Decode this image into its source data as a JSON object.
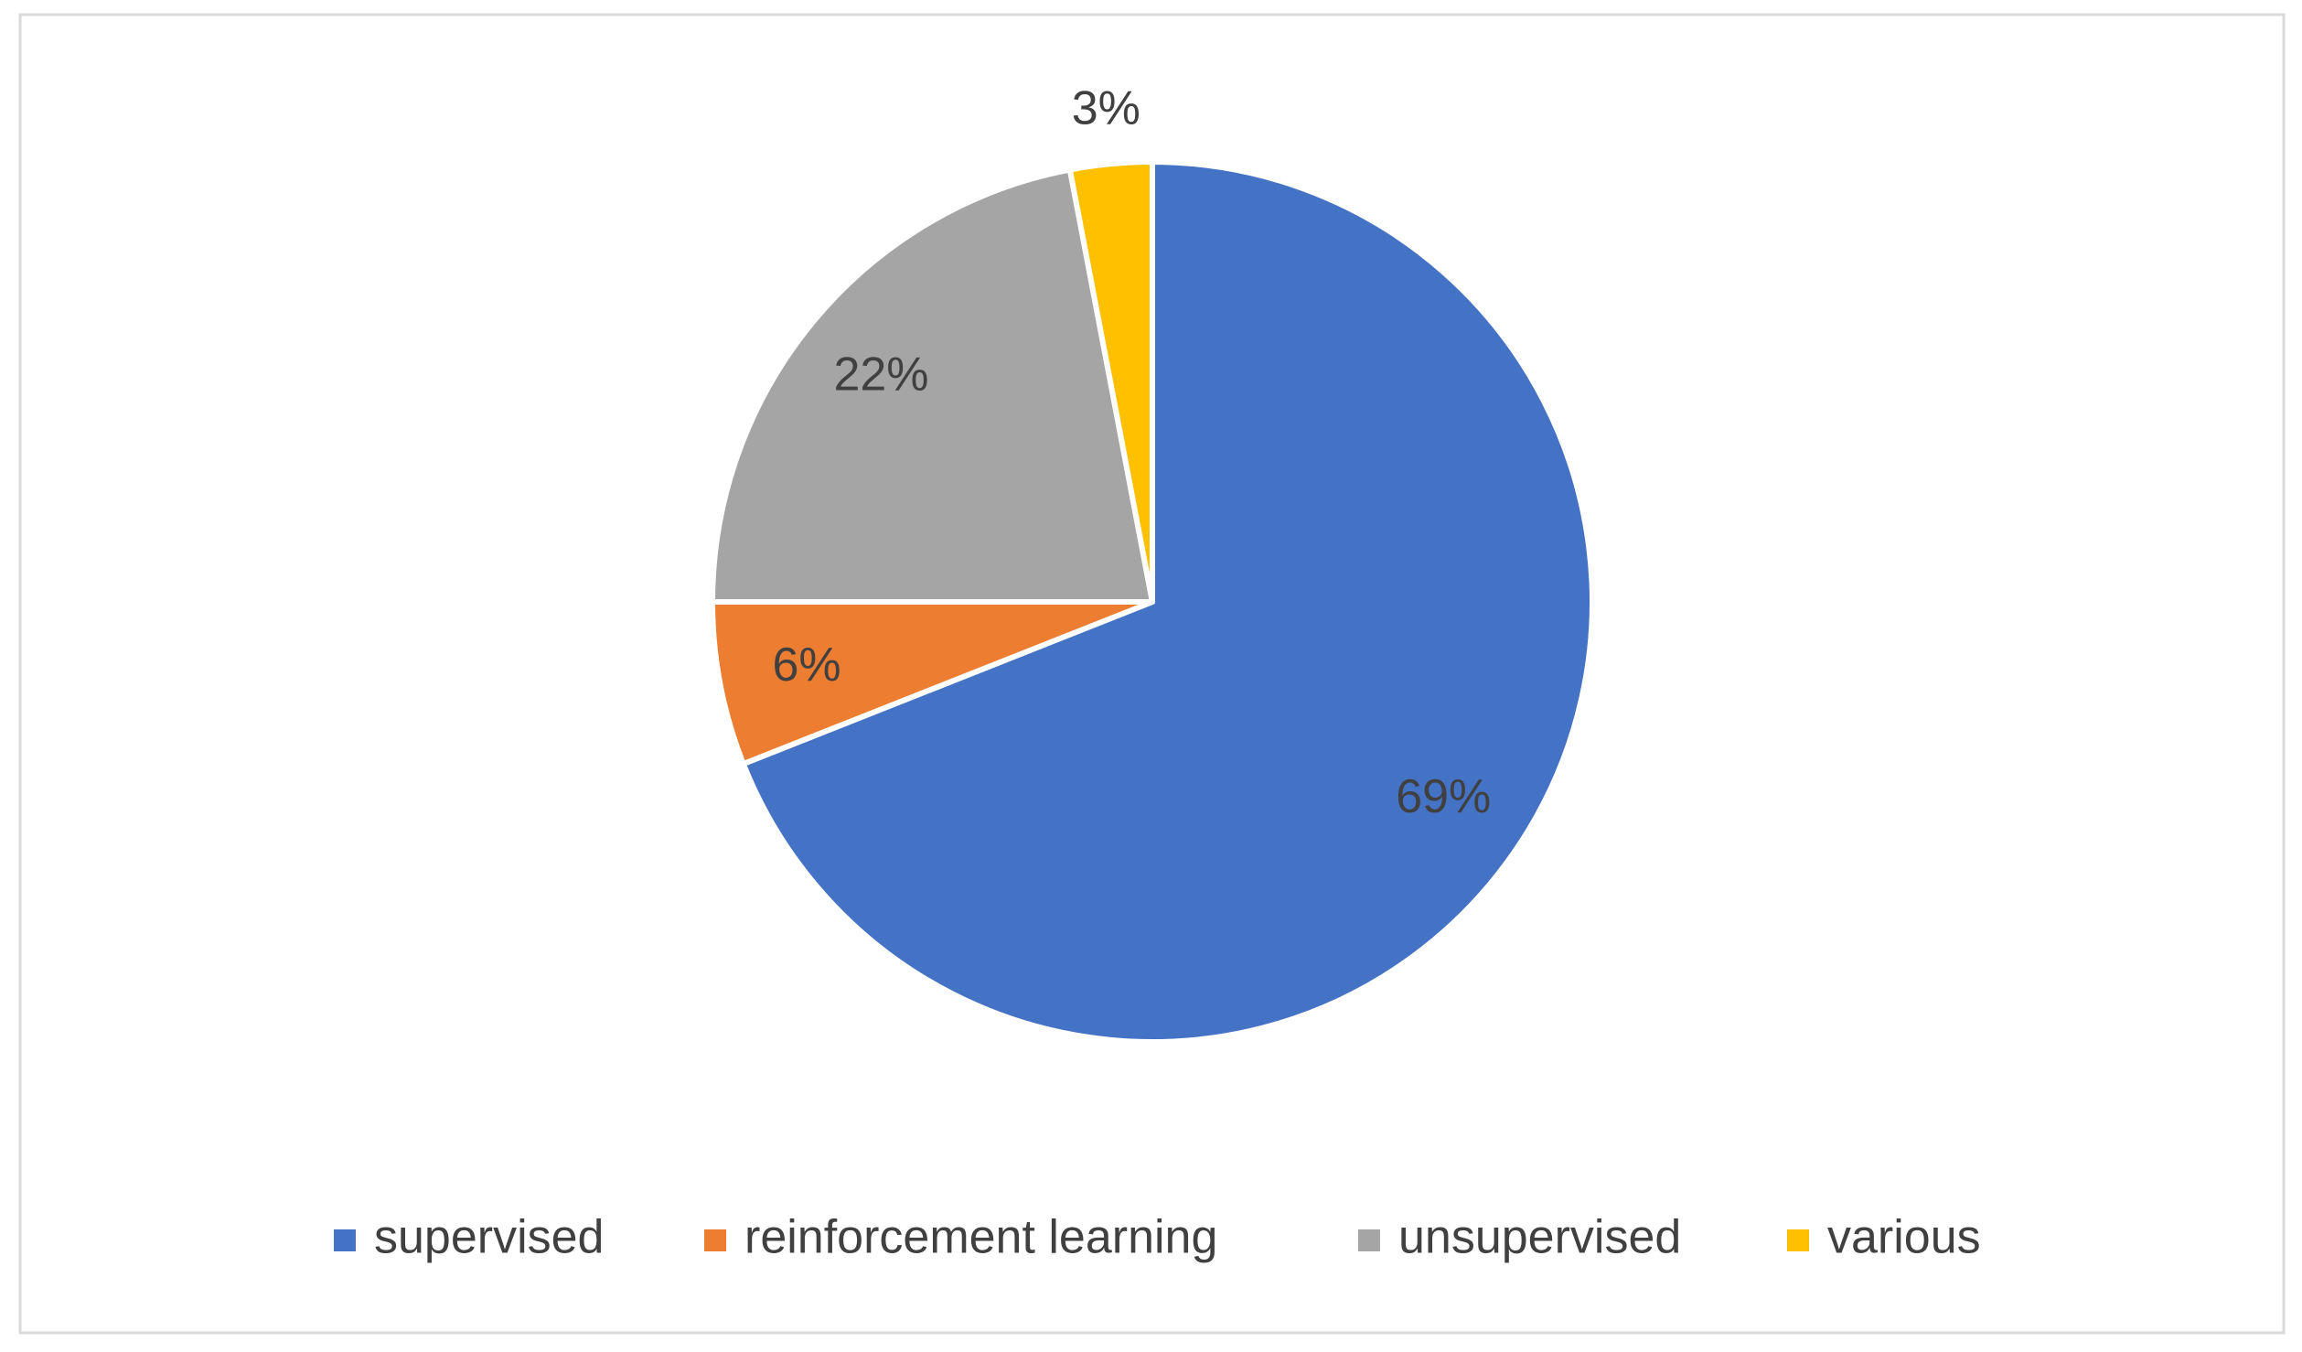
{
  "chart_data": {
    "type": "pie",
    "categories": [
      "supervised",
      "reinforcement learning",
      "unsupervised",
      "various"
    ],
    "values": [
      69,
      6,
      22,
      3
    ],
    "value_labels": [
      "69%",
      "6%",
      "22%",
      "3%"
    ],
    "colors": [
      "#4472c4",
      "#ed7d31",
      "#a5a5a5",
      "#ffc000"
    ],
    "legend": "bottom"
  }
}
